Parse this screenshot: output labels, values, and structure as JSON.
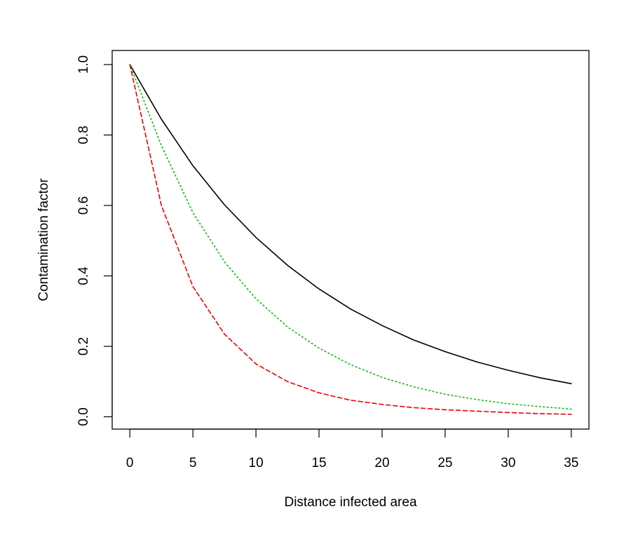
{
  "chart_data": {
    "type": "line",
    "xlabel": "Distance infected area",
    "ylabel": "Contamination factor",
    "xlim": [
      -1.4,
      36.4
    ],
    "ylim": [
      -0.035,
      1.04
    ],
    "x_ticks": [
      0,
      5,
      10,
      15,
      20,
      25,
      30,
      35
    ],
    "y_ticks": [
      0.0,
      0.2,
      0.4,
      0.6,
      0.8,
      1.0
    ],
    "x_tick_labels": [
      "0",
      "5",
      "10",
      "15",
      "20",
      "25",
      "30",
      "35"
    ],
    "y_tick_labels": [
      "0.0",
      "0.2",
      "0.4",
      "0.6",
      "0.8",
      "1.0"
    ],
    "grid": false,
    "legend": null,
    "series": [
      {
        "color": "#000000",
        "dash": "solid",
        "x": [
          0,
          2.5,
          5,
          7.5,
          10,
          12.5,
          15,
          17.5,
          20,
          22.5,
          25,
          27.5,
          30,
          32.5,
          35
        ],
        "y": [
          1.0,
          0.845,
          0.713,
          0.602,
          0.509,
          0.43,
          0.363,
          0.306,
          0.259,
          0.218,
          0.185,
          0.156,
          0.132,
          0.111,
          0.094
        ]
      },
      {
        "color": "#00bb00",
        "dash": "dotted",
        "x": [
          0,
          2.5,
          5,
          7.5,
          10,
          12.5,
          15,
          17.5,
          20,
          22.5,
          25,
          27.5,
          30,
          32.5,
          35
        ],
        "y": [
          1.0,
          0.77,
          0.58,
          0.44,
          0.335,
          0.255,
          0.195,
          0.148,
          0.112,
          0.085,
          0.064,
          0.049,
          0.037,
          0.029,
          0.022
        ]
      },
      {
        "color": "#ee0000",
        "dash": "dashed",
        "x": [
          0,
          2.5,
          5,
          7.5,
          10,
          12.5,
          15,
          17.5,
          20,
          22.5,
          25,
          27.5,
          30,
          32.5,
          35
        ],
        "y": [
          1.0,
          0.6,
          0.37,
          0.235,
          0.15,
          0.1,
          0.068,
          0.047,
          0.035,
          0.026,
          0.02,
          0.016,
          0.012,
          0.009,
          0.007
        ]
      }
    ]
  }
}
